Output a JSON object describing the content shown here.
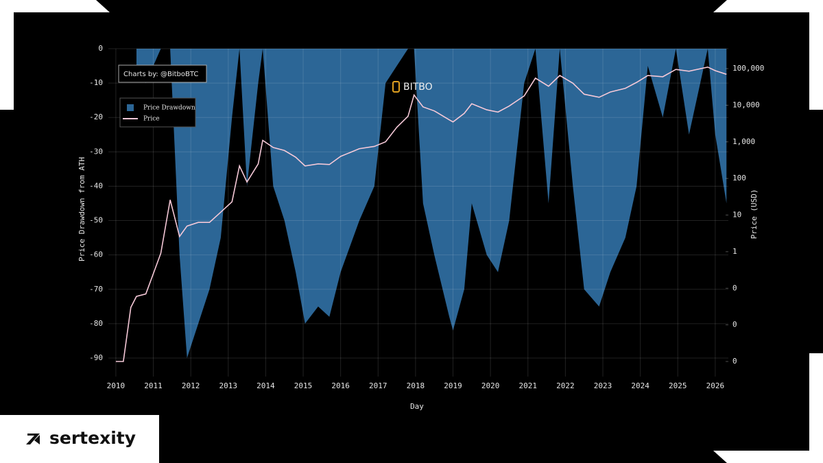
{
  "brand": "sertexity",
  "chart_data": {
    "type": "area",
    "annotation": "Charts by: @BitboBTC",
    "logo": "BITBO",
    "xlabel": "Day",
    "ylabel": "Price Drawdown from ATH",
    "y2label": "Price (USD)",
    "x": [
      2010.0,
      2010.2,
      2010.4,
      2010.55,
      2010.8,
      2011.0,
      2011.2,
      2011.45,
      2011.7,
      2011.9,
      2012.2,
      2012.5,
      2012.8,
      2013.1,
      2013.3,
      2013.5,
      2013.8,
      2013.92,
      2014.2,
      2014.5,
      2014.8,
      2015.05,
      2015.4,
      2015.7,
      2016.0,
      2016.5,
      2016.9,
      2017.2,
      2017.5,
      2017.8,
      2017.96,
      2018.2,
      2018.5,
      2018.9,
      2019.0,
      2019.3,
      2019.5,
      2019.9,
      2020.2,
      2020.5,
      2020.9,
      2021.2,
      2021.55,
      2021.85,
      2022.2,
      2022.5,
      2022.9,
      2023.2,
      2023.6,
      2023.9,
      2024.2,
      2024.6,
      2024.95,
      2025.3,
      2025.8,
      2026.0,
      2026.3
    ],
    "series": [
      {
        "name": "Price Drawdown",
        "type": "area",
        "color": "#2c6696",
        "values": [
          null,
          null,
          null,
          -5,
          -10,
          -5,
          0,
          0,
          -60,
          -90,
          -80,
          -70,
          -55,
          -20,
          0,
          -40,
          -10,
          0,
          -40,
          -50,
          -65,
          -80,
          -75,
          -78,
          -65,
          -50,
          -40,
          -10,
          -5,
          0,
          0,
          -45,
          -60,
          -78,
          -82,
          -70,
          -45,
          -60,
          -65,
          -50,
          -10,
          0,
          -45,
          0,
          -40,
          -70,
          -75,
          -65,
          -55,
          -40,
          -5,
          -20,
          0,
          -25,
          0,
          -25,
          -45
        ]
      },
      {
        "name": "Price",
        "type": "line",
        "axis": "y2",
        "color": "#f6c9d8",
        "values": [
          0.001,
          0.001,
          0.03,
          0.06,
          0.07,
          0.25,
          0.9,
          26,
          2.6,
          5,
          6.3,
          6.3,
          12,
          23,
          220,
          80,
          250,
          1100,
          700,
          580,
          380,
          220,
          250,
          240,
          400,
          650,
          750,
          1000,
          2500,
          5000,
          19000,
          9000,
          7000,
          4000,
          3500,
          6000,
          11000,
          7500,
          6500,
          9500,
          18000,
          55000,
          33000,
          65000,
          40000,
          20000,
          16500,
          23000,
          29000,
          42000,
          65000,
          60000,
          95000,
          85000,
          110000,
          88000,
          70000
        ]
      }
    ],
    "xlim": [
      2009.8,
      2026.35
    ],
    "xticks": [
      2010,
      2011,
      2012,
      2013,
      2014,
      2015,
      2016,
      2017,
      2018,
      2019,
      2020,
      2021,
      2022,
      2023,
      2024,
      2025,
      2026
    ],
    "ylim": [
      -91,
      0
    ],
    "yticks": [
      0,
      -10,
      -20,
      -30,
      -40,
      -50,
      -60,
      -70,
      -80,
      -90
    ],
    "y2lim": [
      0.001,
      350000
    ],
    "y2log": true,
    "y2ticks": [
      {
        "value": 100000,
        "label": "100,000"
      },
      {
        "value": 10000,
        "label": "10,000"
      },
      {
        "value": 1000,
        "label": "1,000"
      },
      100,
      10,
      1,
      {
        "value": 0.1,
        "label": "0"
      },
      {
        "value": 0.01,
        "label": "0"
      },
      {
        "value": 0.001,
        "label": "0"
      }
    ],
    "grid": true,
    "legend": "top-left"
  }
}
